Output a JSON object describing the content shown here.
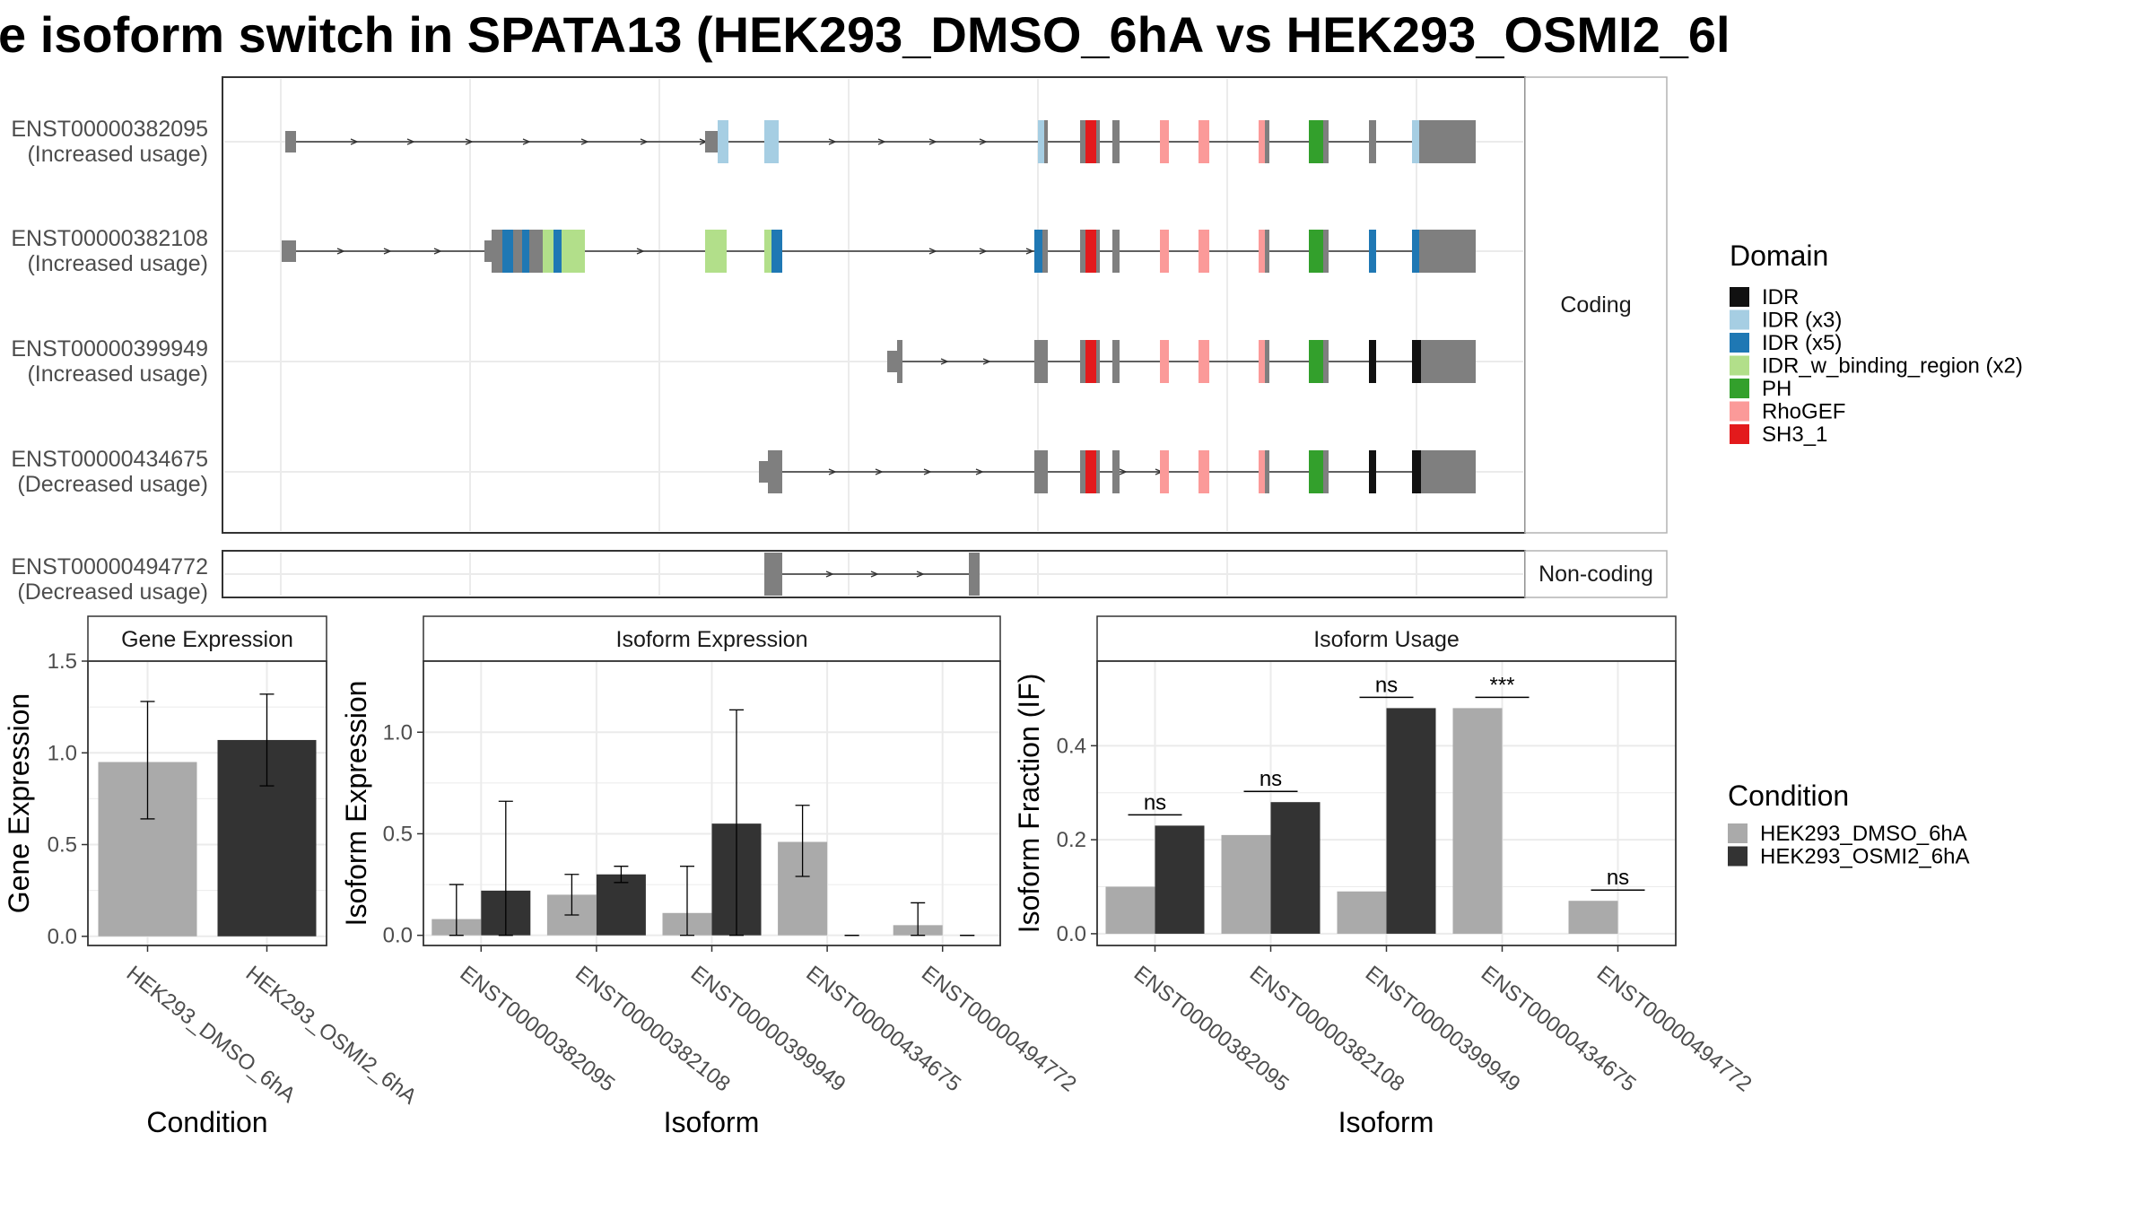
{
  "title": "e isoform switch in SPATA13 (HEK293_DMSO_6hA vs HEK293_OSMI2_6l",
  "colors": {
    "IDR": "#111111",
    "IDR (x3)": "#a6cee3",
    "IDR (x5)": "#1f78b4",
    "IDR_w_binding_region (x2)": "#b2df8a",
    "PH": "#33a02c",
    "RhoGEF": "#fb9a99",
    "SH3_1": "#e31a1c",
    "exon": "#7f7f7f",
    "line": "#333333",
    "cond_dmso": "#aaaaaa",
    "cond_osmi": "#333333",
    "grid": "#ebebeb",
    "panel_border": "#333333"
  },
  "structure": {
    "coding_label": "Coding",
    "noncoding_label": "Non-coding",
    "transcripts": [
      {
        "id": "ENST00000382095",
        "status": "(Increased usage)",
        "group": "coding"
      },
      {
        "id": "ENST00000382108",
        "status": "(Increased usage)",
        "group": "coding"
      },
      {
        "id": "ENST00000399949",
        "status": "(Increased usage)",
        "group": "coding"
      },
      {
        "id": "ENST00000434675",
        "status": "(Decreased usage)",
        "group": "coding"
      },
      {
        "id": "ENST00000494772",
        "status": "(Decreased usage)",
        "group": "noncoding"
      }
    ]
  },
  "legend_domain": {
    "title": "Domain",
    "items": [
      "IDR",
      "IDR (x3)",
      "IDR (x5)",
      "IDR_w_binding_region (x2)",
      "PH",
      "RhoGEF",
      "SH3_1"
    ]
  },
  "legend_condition": {
    "title": "Condition",
    "items": [
      "HEK293_DMSO_6hA",
      "HEK293_OSMI2_6hA"
    ]
  },
  "chart_data": [
    {
      "type": "bar",
      "panel_title": "Gene Expression",
      "xlabel": "Condition",
      "ylabel": "Gene Expression",
      "categories": [
        "HEK293_DMSO_6hA",
        "HEK293_OSMI2_6hA"
      ],
      "values": [
        0.95,
        1.07
      ],
      "error_low": [
        0.64,
        0.82
      ],
      "error_high": [
        1.28,
        1.32
      ],
      "yticks": [
        "0.0",
        "0.5",
        "1.0",
        "1.5"
      ],
      "ylim": [
        -0.05,
        1.5
      ]
    },
    {
      "type": "bar",
      "panel_title": "Isoform Expression",
      "xlabel": "Isoform",
      "ylabel": "Isoform Expression",
      "categories": [
        "ENST00000382095",
        "ENST00000382108",
        "ENST00000399949",
        "ENST00000434675",
        "ENST00000494772"
      ],
      "series": [
        {
          "name": "HEK293_DMSO_6hA",
          "values": [
            0.08,
            0.2,
            0.11,
            0.46,
            0.05
          ],
          "error_low": [
            0.0,
            0.1,
            0.0,
            0.29,
            0.0
          ],
          "error_high": [
            0.25,
            0.3,
            0.34,
            0.64,
            0.16
          ]
        },
        {
          "name": "HEK293_OSMI2_6hA",
          "values": [
            0.22,
            0.3,
            0.55,
            0.0,
            0.0
          ],
          "error_low": [
            0.0,
            0.26,
            0.0,
            0.0,
            0.0
          ],
          "error_high": [
            0.66,
            0.34,
            1.11,
            0.0,
            0.0
          ]
        }
      ],
      "yticks": [
        "0.0",
        "0.5",
        "1.0"
      ],
      "ylim": [
        -0.05,
        1.35
      ]
    },
    {
      "type": "bar",
      "panel_title": "Isoform Usage",
      "xlabel": "Isoform",
      "ylabel": "Isoform Fraction (IF)",
      "categories": [
        "ENST00000382095",
        "ENST00000382108",
        "ENST00000399949",
        "ENST00000434675",
        "ENST00000494772"
      ],
      "series": [
        {
          "name": "HEK293_DMSO_6hA",
          "values": [
            0.1,
            0.21,
            0.09,
            0.48,
            0.07
          ]
        },
        {
          "name": "HEK293_OSMI2_6hA",
          "values": [
            0.23,
            0.28,
            0.48,
            0.0,
            0.0
          ]
        }
      ],
      "significance": [
        "ns",
        "ns",
        "ns",
        "***",
        "ns"
      ],
      "yticks": [
        "0.0",
        "0.2",
        "0.4"
      ],
      "ylim": [
        -0.025,
        0.58
      ]
    }
  ]
}
